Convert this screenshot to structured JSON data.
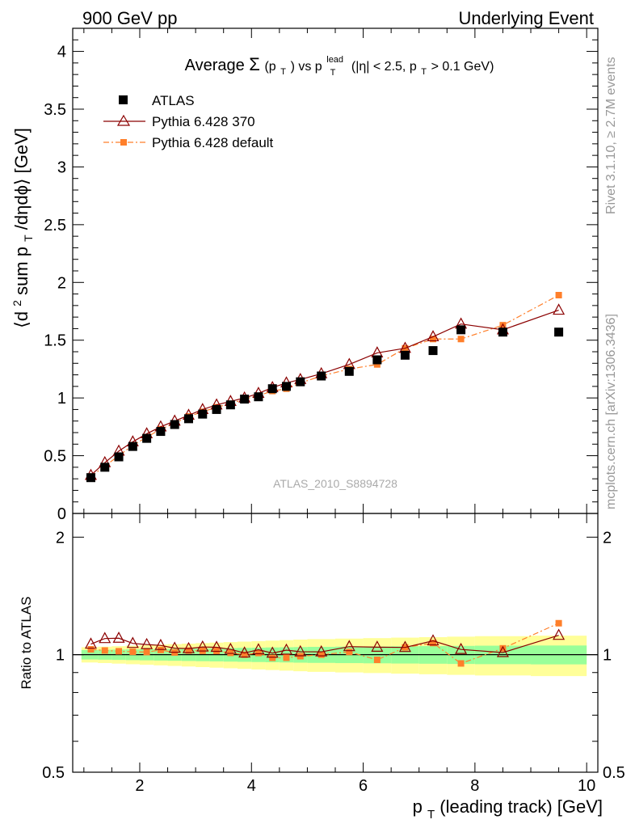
{
  "header": {
    "left": "900 GeV pp",
    "right": "Underlying Event"
  },
  "side": {
    "rivet": "Rivet 3.1.10, ≥ 2.7M events",
    "mcplots": "mcplots.cern.ch [arXiv:1306.3436]"
  },
  "watermark": "ATLAS_2010_S8894728",
  "chart_data": {
    "type": "scatter",
    "title_parts": {
      "a": "Average",
      "sigma": "Σ",
      "b": "(p",
      "b_sub": "T",
      "c": ") vs p",
      "c_sup": "lead",
      "c_sub": "T",
      "d": " (|η| < 2.5, p",
      "d_sub": "T",
      "e": " > 0.1 GeV)"
    },
    "ylabel_parts": {
      "a": "⟨d",
      "sup": "2",
      "b": " sum p",
      "sub": "T",
      "c": "/dηdϕ⟩ [GeV]"
    },
    "xlabel_parts": {
      "a": "p",
      "sub": "T",
      "b": " (leading track) [GeV]"
    },
    "ratio_ylabel": "Ratio to ATLAS",
    "xlim": [
      0.8,
      10.2
    ],
    "ylim_main": [
      0,
      4.2
    ],
    "ylim_ratio": [
      0.5,
      2.3
    ],
    "x_ticks": [
      "2",
      "4",
      "6",
      "8",
      "10"
    ],
    "y_ticks_main": [
      "0",
      "0.5",
      "1",
      "1.5",
      "2",
      "2.5",
      "3",
      "3.5",
      "4"
    ],
    "y_ticks_ratio": [
      "0.5",
      "1",
      "2"
    ],
    "legend_position": "top-left",
    "series": [
      {
        "name": "ATLAS",
        "color": "#000000",
        "marker": "square",
        "x": [
          1.125,
          1.375,
          1.625,
          1.875,
          2.125,
          2.375,
          2.625,
          2.875,
          3.125,
          3.375,
          3.625,
          3.875,
          4.125,
          4.375,
          4.625,
          4.875,
          5.25,
          5.75,
          6.25,
          6.75,
          7.25,
          7.75,
          8.5,
          9.5
        ],
        "y": [
          0.31,
          0.4,
          0.49,
          0.58,
          0.65,
          0.71,
          0.77,
          0.82,
          0.86,
          0.9,
          0.94,
          0.99,
          1.01,
          1.08,
          1.1,
          1.14,
          1.19,
          1.23,
          1.33,
          1.37,
          1.41,
          1.59,
          1.57,
          1.57
        ]
      },
      {
        "name": "Pythia 6.428 370",
        "color": "#8b0000",
        "marker": "triangle-open",
        "x": [
          1.125,
          1.375,
          1.625,
          1.875,
          2.125,
          2.375,
          2.625,
          2.875,
          3.125,
          3.375,
          3.625,
          3.875,
          4.125,
          4.375,
          4.625,
          4.875,
          5.25,
          5.75,
          6.25,
          6.75,
          7.25,
          7.75,
          8.5,
          9.5
        ],
        "y": [
          0.33,
          0.44,
          0.54,
          0.62,
          0.69,
          0.75,
          0.8,
          0.85,
          0.9,
          0.94,
          0.97,
          1.0,
          1.04,
          1.09,
          1.13,
          1.16,
          1.21,
          1.29,
          1.39,
          1.43,
          1.53,
          1.64,
          1.59,
          1.76
        ]
      },
      {
        "name": "Pythia 6.428 default",
        "color": "#ff7f2a",
        "marker": "square-small",
        "x": [
          1.125,
          1.375,
          1.625,
          1.875,
          2.125,
          2.375,
          2.625,
          2.875,
          3.125,
          3.375,
          3.625,
          3.875,
          4.125,
          4.375,
          4.625,
          4.875,
          5.25,
          5.75,
          6.25,
          6.75,
          7.25,
          7.75,
          8.5,
          9.5
        ],
        "y": [
          0.32,
          0.41,
          0.5,
          0.59,
          0.66,
          0.73,
          0.78,
          0.84,
          0.88,
          0.92,
          0.95,
          0.99,
          1.02,
          1.06,
          1.08,
          1.13,
          1.19,
          1.25,
          1.29,
          1.43,
          1.51,
          1.51,
          1.63,
          1.89
        ]
      }
    ]
  }
}
